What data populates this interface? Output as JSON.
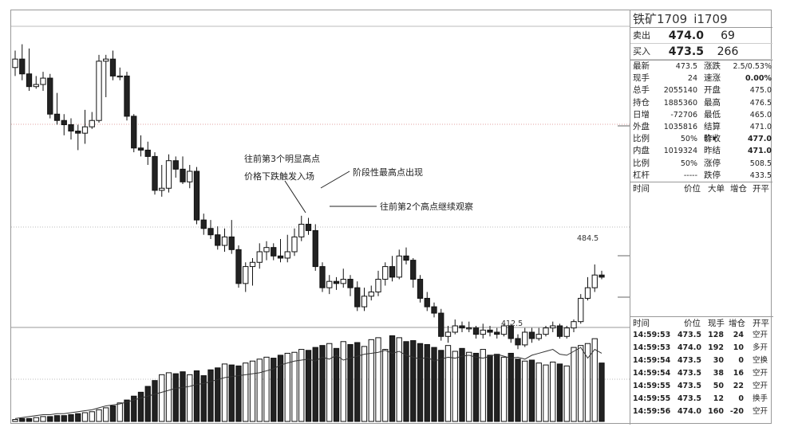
{
  "title": {
    "name": "铁矿1709",
    "code": "i1709"
  },
  "quote": {
    "sell": {
      "label": "卖出",
      "price": "474.0",
      "volume": "69"
    },
    "buy": {
      "label": "买入",
      "price": "473.5",
      "volume": "266"
    }
  },
  "stats": [
    {
      "k": "最新",
      "v": "473.5",
      "k2": "涨跌",
      "v2": "2.5/0.53%",
      "b2": false
    },
    {
      "k": "现手",
      "v": "24",
      "k2": "速涨",
      "v2": "0.00%",
      "b2": true
    },
    {
      "k": "总手",
      "v": "2055140",
      "k2": "开盘",
      "v2": "475.0",
      "b2": false
    },
    {
      "k": "持仓",
      "v": "1885360",
      "k2": "最高",
      "v2": "476.5",
      "b2": false
    },
    {
      "k": "日增",
      "v": "-72706",
      "k2": "最低",
      "v2": "465.0",
      "b2": false
    },
    {
      "k": "外盘",
      "v": "1035816",
      "k2": "结算价▾",
      "v2": "471.0",
      "b2": false
    },
    {
      "k": "比例",
      "v": "50%",
      "k2": "昨收",
      "v2": "477.0",
      "b2": true
    },
    {
      "k": "内盘",
      "v": "1019324",
      "k2": "昨结",
      "v2": "471.0",
      "b2": true
    },
    {
      "k": "比例",
      "v": "50%",
      "k2": "涨停",
      "v2": "508.5",
      "b2": false
    },
    {
      "k": "杠杆",
      "v": "-----",
      "k2": "跌停",
      "v2": "433.5",
      "b2": false
    }
  ],
  "big_header": {
    "time": "时间",
    "price": "价位",
    "big": "大单",
    "inc": "增仓",
    "oc": "开平"
  },
  "tick_header": {
    "time": "时间",
    "price": "价位",
    "vol": "现手",
    "inc": "增仓",
    "oc": "开平"
  },
  "ticks": [
    {
      "time": "14:59:53",
      "price": "473.5",
      "vol": "128",
      "inc": "24",
      "oc": "空开"
    },
    {
      "time": "14:59:53",
      "price": "474.0",
      "vol": "192",
      "inc": "10",
      "oc": "多开"
    },
    {
      "time": "14:59:54",
      "price": "473.5",
      "vol": "30",
      "inc": "0",
      "oc": "空换"
    },
    {
      "time": "14:59:54",
      "price": "473.5",
      "vol": "38",
      "inc": "16",
      "oc": "空开"
    },
    {
      "time": "14:59:55",
      "price": "473.5",
      "vol": "50",
      "inc": "22",
      "oc": "空开"
    },
    {
      "time": "14:59:55",
      "price": "473.5",
      "vol": "12",
      "inc": "0",
      "oc": "换手"
    },
    {
      "time": "14:59:56",
      "price": "474.0",
      "vol": "160",
      "inc": "-20",
      "oc": "空开"
    }
  ],
  "annotations": {
    "third_high": "往前第3个明显高点",
    "trigger": "价格下跌触发入场",
    "stage_high": "阶段性最高点出现",
    "second_high": "往前第2个高点继续观察",
    "max_label": "484.5",
    "min_label": "412.5"
  },
  "chart_data": {
    "type": "candlestick",
    "price_range": [
      402,
      548
    ],
    "candles": [
      {
        "o": 524,
        "c": 528,
        "h": 532,
        "l": 520
      },
      {
        "o": 528,
        "c": 521,
        "h": 535,
        "l": 518
      },
      {
        "o": 521,
        "c": 515,
        "h": 533,
        "l": 513
      },
      {
        "o": 515,
        "c": 516,
        "h": 520,
        "l": 514
      },
      {
        "o": 516,
        "c": 519,
        "h": 522,
        "l": 513
      },
      {
        "o": 519,
        "c": 502,
        "h": 521,
        "l": 500
      },
      {
        "o": 502,
        "c": 499,
        "h": 512,
        "l": 497
      },
      {
        "o": 499,
        "c": 497,
        "h": 502,
        "l": 492
      },
      {
        "o": 497,
        "c": 494,
        "h": 500,
        "l": 490
      },
      {
        "o": 494,
        "c": 493,
        "h": 497,
        "l": 485
      },
      {
        "o": 493,
        "c": 496,
        "h": 504,
        "l": 488
      },
      {
        "o": 496,
        "c": 499,
        "h": 503,
        "l": 495
      },
      {
        "o": 499,
        "c": 527,
        "h": 530,
        "l": 498
      },
      {
        "o": 527,
        "c": 528,
        "h": 530,
        "l": 510
      },
      {
        "o": 528,
        "c": 520,
        "h": 532,
        "l": 518
      },
      {
        "o": 520,
        "c": 520,
        "h": 524,
        "l": 518
      },
      {
        "o": 520,
        "c": 501,
        "h": 522,
        "l": 499
      },
      {
        "o": 501,
        "c": 486,
        "h": 502,
        "l": 484
      },
      {
        "o": 486,
        "c": 485,
        "h": 492,
        "l": 482
      },
      {
        "o": 485,
        "c": 482,
        "h": 489,
        "l": 478
      },
      {
        "o": 482,
        "c": 466,
        "h": 484,
        "l": 464
      },
      {
        "o": 466,
        "c": 467,
        "h": 478,
        "l": 463
      },
      {
        "o": 467,
        "c": 480,
        "h": 483,
        "l": 465
      },
      {
        "o": 480,
        "c": 476,
        "h": 482,
        "l": 472
      },
      {
        "o": 476,
        "c": 470,
        "h": 482,
        "l": 469
      },
      {
        "o": 470,
        "c": 475,
        "h": 478,
        "l": 467
      },
      {
        "o": 475,
        "c": 452,
        "h": 477,
        "l": 450
      },
      {
        "o": 452,
        "c": 448,
        "h": 455,
        "l": 445
      },
      {
        "o": 448,
        "c": 445,
        "h": 452,
        "l": 443
      },
      {
        "o": 445,
        "c": 440,
        "h": 449,
        "l": 438
      },
      {
        "o": 440,
        "c": 444,
        "h": 448,
        "l": 437
      },
      {
        "o": 444,
        "c": 438,
        "h": 452,
        "l": 436
      },
      {
        "o": 438,
        "c": 422,
        "h": 440,
        "l": 420
      },
      {
        "o": 422,
        "c": 430,
        "h": 432,
        "l": 418
      },
      {
        "o": 430,
        "c": 432,
        "h": 434,
        "l": 421
      },
      {
        "o": 432,
        "c": 437,
        "h": 441,
        "l": 429
      },
      {
        "o": 437,
        "c": 439,
        "h": 442,
        "l": 433
      },
      {
        "o": 439,
        "c": 435,
        "h": 441,
        "l": 433
      },
      {
        "o": 435,
        "c": 434,
        "h": 443,
        "l": 432
      },
      {
        "o": 434,
        "c": 437,
        "h": 445,
        "l": 432
      },
      {
        "o": 437,
        "c": 444,
        "h": 448,
        "l": 435
      },
      {
        "o": 444,
        "c": 450,
        "h": 454,
        "l": 442
      },
      {
        "o": 450,
        "c": 447,
        "h": 453,
        "l": 445
      },
      {
        "o": 447,
        "c": 430,
        "h": 450,
        "l": 428
      },
      {
        "o": 430,
        "c": 420,
        "h": 432,
        "l": 418
      },
      {
        "o": 420,
        "c": 423,
        "h": 426,
        "l": 417
      },
      {
        "o": 423,
        "c": 422,
        "h": 425,
        "l": 419
      },
      {
        "o": 422,
        "c": 424,
        "h": 429,
        "l": 420
      },
      {
        "o": 424,
        "c": 420,
        "h": 426,
        "l": 416
      },
      {
        "o": 420,
        "c": 411,
        "h": 423,
        "l": 409
      },
      {
        "o": 411,
        "c": 416,
        "h": 420,
        "l": 409
      },
      {
        "o": 416,
        "c": 418,
        "h": 421,
        "l": 414
      },
      {
        "o": 418,
        "c": 424,
        "h": 428,
        "l": 416
      },
      {
        "o": 424,
        "c": 430,
        "h": 432,
        "l": 421
      },
      {
        "o": 430,
        "c": 425,
        "h": 435,
        "l": 423
      },
      {
        "o": 425,
        "c": 435,
        "h": 438,
        "l": 424
      },
      {
        "o": 435,
        "c": 433,
        "h": 439,
        "l": 431
      },
      {
        "o": 433,
        "c": 424,
        "h": 434,
        "l": 420
      },
      {
        "o": 424,
        "c": 415,
        "h": 426,
        "l": 413
      },
      {
        "o": 415,
        "c": 411,
        "h": 418,
        "l": 409
      },
      {
        "o": 411,
        "c": 408,
        "h": 413,
        "l": 406
      },
      {
        "o": 408,
        "c": 397,
        "h": 410,
        "l": 395
      },
      {
        "o": 397,
        "c": 399,
        "h": 402,
        "l": 394
      },
      {
        "o": 399,
        "c": 402,
        "h": 405,
        "l": 398
      },
      {
        "o": 402,
        "c": 401,
        "h": 404,
        "l": 399
      },
      {
        "o": 401,
        "c": 401,
        "h": 404,
        "l": 399
      },
      {
        "o": 401,
        "c": 398,
        "h": 402,
        "l": 396
      },
      {
        "o": 398,
        "c": 400,
        "h": 403,
        "l": 396
      },
      {
        "o": 400,
        "c": 399,
        "h": 402,
        "l": 397
      },
      {
        "o": 399,
        "c": 398,
        "h": 401,
        "l": 396
      },
      {
        "o": 398,
        "c": 402,
        "h": 403,
        "l": 397
      },
      {
        "o": 402,
        "c": 396,
        "h": 403,
        "l": 394
      },
      {
        "o": 396,
        "c": 393,
        "h": 398,
        "l": 391
      },
      {
        "o": 393,
        "c": 399,
        "h": 401,
        "l": 392
      },
      {
        "o": 399,
        "c": 396,
        "h": 401,
        "l": 394
      },
      {
        "o": 396,
        "c": 398,
        "h": 401,
        "l": 395
      },
      {
        "o": 398,
        "c": 401,
        "h": 402,
        "l": 397
      },
      {
        "o": 401,
        "c": 402,
        "h": 404,
        "l": 399
      },
      {
        "o": 402,
        "c": 397,
        "h": 403,
        "l": 396
      },
      {
        "o": 397,
        "c": 401,
        "h": 402,
        "l": 396
      },
      {
        "o": 401,
        "c": 404,
        "h": 405,
        "l": 399
      },
      {
        "o": 404,
        "c": 415,
        "h": 417,
        "l": 403
      },
      {
        "o": 415,
        "c": 420,
        "h": 425,
        "l": 414
      },
      {
        "o": 420,
        "c": 426,
        "h": 431,
        "l": 418
      },
      {
        "o": 426,
        "c": 425,
        "h": 428,
        "l": 424
      }
    ],
    "volume": [
      2,
      3,
      3,
      4,
      5,
      5,
      6,
      6,
      7,
      8,
      9,
      10,
      12,
      14,
      16,
      19,
      22,
      26,
      30,
      36,
      42,
      48,
      50,
      49,
      51,
      48,
      52,
      47,
      53,
      55,
      59,
      58,
      57,
      60,
      62,
      64,
      66,
      65,
      68,
      70,
      71,
      74,
      73,
      76,
      78,
      80,
      75,
      82,
      79,
      81,
      77,
      84,
      86,
      74,
      88,
      86,
      82,
      83,
      80,
      79,
      76,
      73,
      78,
      72,
      75,
      71,
      70,
      74,
      68,
      69,
      66,
      70,
      64,
      62,
      63,
      60,
      58,
      61,
      59,
      57,
      76,
      78,
      80,
      85,
      60
    ],
    "open_interest": [
      3,
      4,
      5,
      6,
      7,
      7,
      8,
      8,
      9,
      10,
      11,
      12,
      14,
      16,
      17,
      18,
      20,
      22,
      24,
      26,
      28,
      30,
      32,
      34,
      35,
      36,
      38,
      39,
      41,
      43,
      45,
      46,
      47,
      48,
      49,
      50,
      52,
      54,
      58,
      60,
      62,
      63,
      64,
      62,
      66,
      64,
      68,
      63,
      65,
      67,
      69,
      70,
      71,
      73,
      70,
      72,
      68,
      66,
      64,
      66,
      62,
      64,
      66,
      65,
      67,
      68,
      66,
      65,
      67,
      69,
      67,
      65,
      66,
      64,
      68,
      70,
      72,
      74,
      69,
      68,
      72,
      76,
      65,
      74,
      70
    ]
  }
}
